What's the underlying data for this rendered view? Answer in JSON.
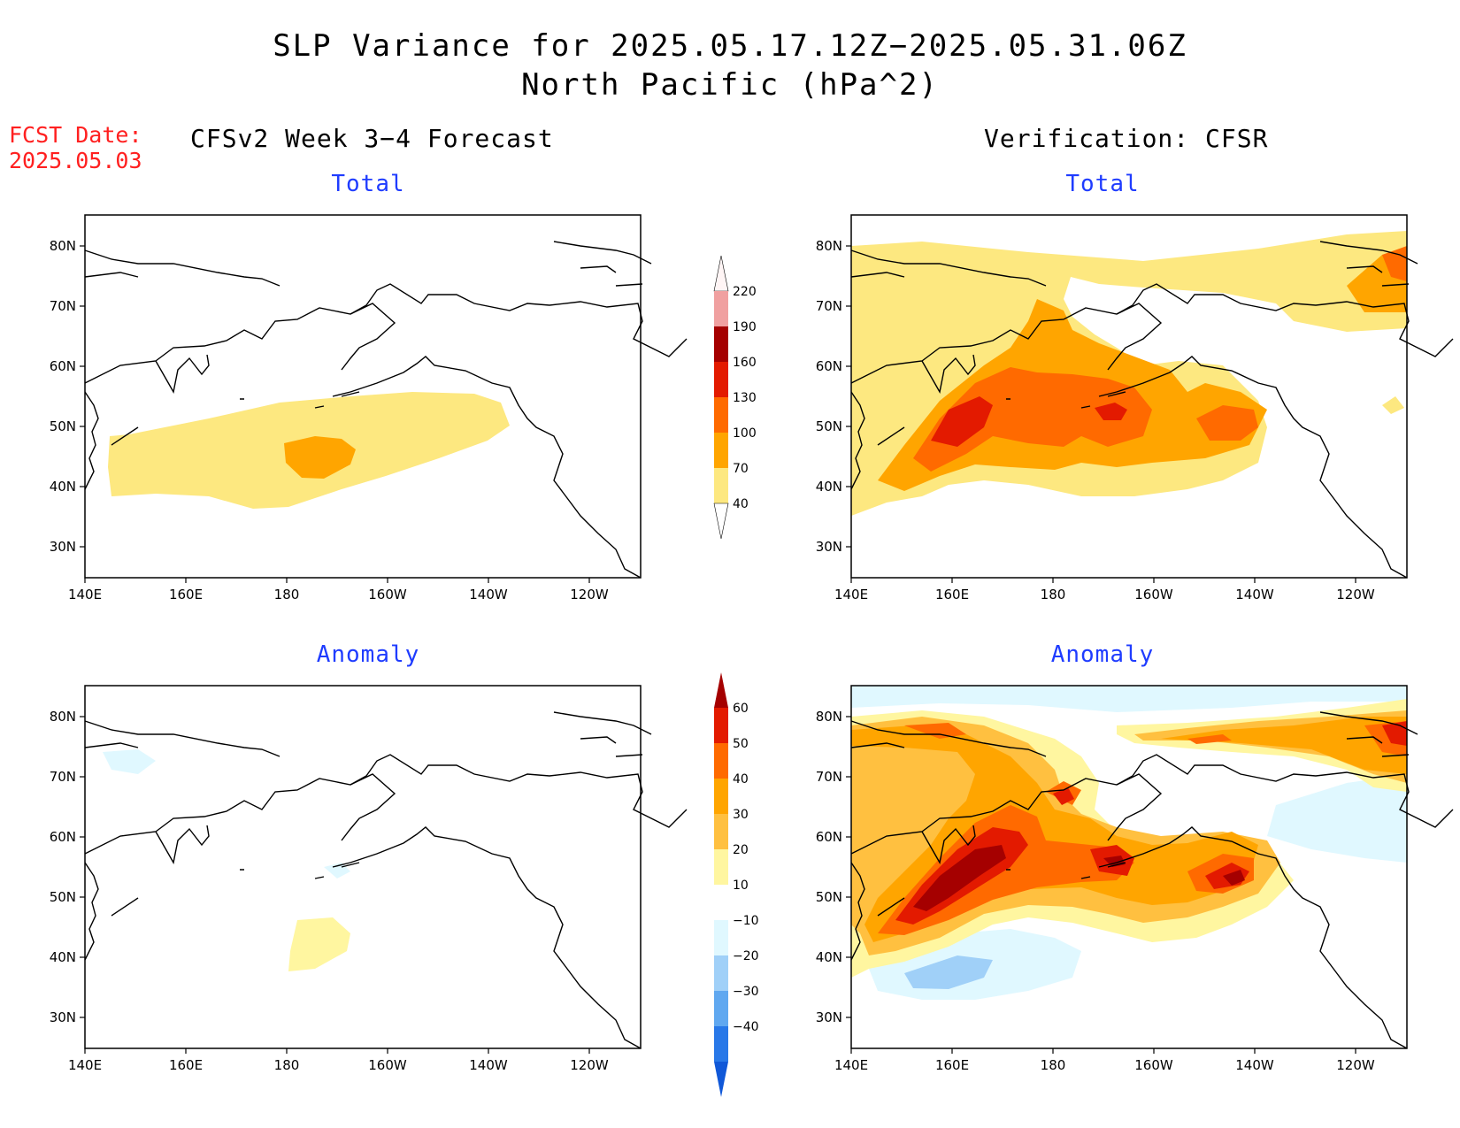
{
  "title_line1": "SLP Variance for 2025.05.17.12Z−2025.05.31.06Z",
  "title_line2": "North Pacific (hPa^2)",
  "fcst_label": "FCST Date:",
  "fcst_date": "2025.05.03",
  "left_header": "CFSv2 Week 3−4 Forecast",
  "right_header": "Verification: CFSR",
  "panels": {
    "fcst_total_label": "Total",
    "ver_total_label": "Total",
    "fcst_anom_label": "Anomaly",
    "ver_anom_label": "Anomaly"
  },
  "axes": {
    "lon_ticks": [
      "140E",
      "160E",
      "180",
      "160W",
      "140W",
      "120W"
    ],
    "lat_ticks": [
      "80N",
      "70N",
      "60N",
      "50N",
      "40N",
      "30N"
    ]
  },
  "colorbar_total": {
    "levels": [
      "40",
      "70",
      "100",
      "130",
      "160",
      "190",
      "220"
    ],
    "colors": [
      "#fde880",
      "#ffa500",
      "#ff6a00",
      "#e31a00",
      "#a50000",
      "#f0a0a0",
      "#fde0e0"
    ]
  },
  "colorbar_anomaly": {
    "levels": [
      "60",
      "50",
      "40",
      "30",
      "20",
      "10",
      "−10",
      "−20",
      "−30",
      "−40"
    ],
    "colors": [
      "#a50000",
      "#e31a00",
      "#ff6a00",
      "#ffa500",
      "#ffc040",
      "#fff6a0",
      "#ffffff",
      "#e0f8ff",
      "#a0d0f8",
      "#60a8f0",
      "#2878e8",
      "#1058d8"
    ]
  }
}
